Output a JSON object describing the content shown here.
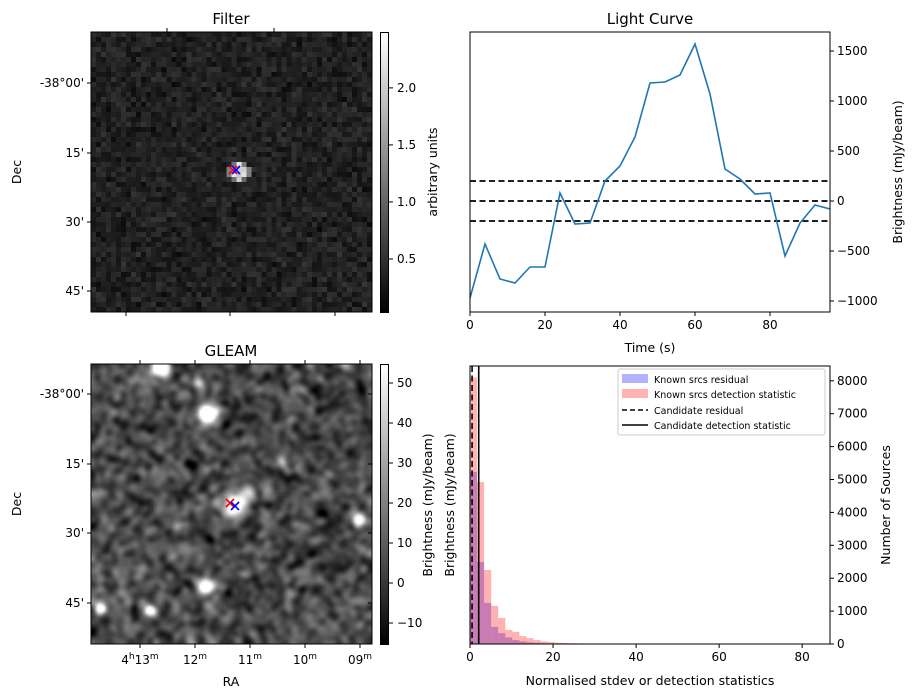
{
  "filter_panel": {
    "title": "Filter",
    "ylabel": "Dec",
    "dec_ticks": [
      "-38°00'",
      "15'",
      "30'",
      "45'"
    ],
    "colorbar": {
      "label": "arbitrary units",
      "range": [
        0.035,
        2.49
      ],
      "ticks": [
        2.0,
        1.5,
        1.0,
        0.5
      ],
      "tick_labels": [
        "2.0",
        "1.5",
        "1.0",
        "0.5"
      ]
    },
    "markers": [
      {
        "color": "#ff0000",
        "symbol": "x"
      },
      {
        "color": "#0000ff",
        "symbol": "x"
      }
    ]
  },
  "gleam_panel": {
    "title": "GLEAM",
    "ylabel": "Dec",
    "xlabel": "RA",
    "dec_ticks": [
      "-38°00'",
      "15'",
      "30'",
      "45'"
    ],
    "ra_ticks": [
      {
        "h": "4",
        "hsup": "h",
        "m": "13",
        "msup": "m"
      },
      {
        "h": "",
        "hsup": "",
        "m": "12",
        "msup": "m"
      },
      {
        "h": "",
        "hsup": "",
        "m": "11",
        "msup": "m"
      },
      {
        "h": "",
        "hsup": "",
        "m": "10",
        "msup": "m"
      },
      {
        "h": "",
        "hsup": "",
        "m": "09",
        "msup": "m"
      }
    ],
    "colorbar": {
      "label": "Brightness (mJy/beam)",
      "range": [
        -15.5,
        54.5
      ],
      "ticks": [
        50,
        40,
        30,
        20,
        10,
        0,
        -10
      ],
      "tick_labels": [
        "50",
        "40",
        "30",
        "20",
        "10",
        "0",
        "−10"
      ]
    },
    "markers": [
      {
        "color": "#ff0000",
        "symbol": "x"
      },
      {
        "color": "#0000ff",
        "symbol": "x"
      }
    ]
  },
  "chart_data": [
    {
      "type": "line",
      "title": "Light Curve",
      "xlabel": "Time (s)",
      "ylabel": "Brightness (mJy/beam)",
      "xlim": [
        0,
        96
      ],
      "ylim": [
        -1110,
        1690
      ],
      "xticks": [
        0,
        20,
        40,
        60,
        80
      ],
      "yticks": [
        1500,
        1000,
        500,
        0,
        -500,
        -1000
      ],
      "ytick_labels": [
        "1500",
        "1000",
        "500",
        "0",
        "−500",
        "−1000"
      ],
      "color": "#1f77b4",
      "x": [
        0,
        4,
        8,
        12,
        16,
        20,
        24,
        28,
        32,
        36,
        40,
        44,
        48,
        52,
        56,
        60,
        64,
        68,
        72,
        76,
        80,
        84,
        88,
        92,
        96
      ],
      "y": [
        -970,
        -430,
        -780,
        -820,
        -660,
        -660,
        80,
        -230,
        -220,
        200,
        350,
        640,
        1180,
        1190,
        1260,
        1570,
        1070,
        320,
        220,
        70,
        80,
        -550,
        -220,
        -40,
        -80
      ],
      "hlines": [
        200,
        0,
        -200
      ]
    },
    {
      "type": "bar",
      "subtype": "histogram",
      "xlabel": "Normalised stdev or detection statistics",
      "ylabel_left": "Brightness (mJy/beam)",
      "ylabel_right": "Number of Sources",
      "xlim": [
        0,
        86.7
      ],
      "ylim": [
        0,
        8450
      ],
      "xticks": [
        0,
        20,
        40,
        60,
        80
      ],
      "yticks": [
        0,
        1000,
        2000,
        3000,
        4000,
        5000,
        6000,
        7000,
        8000
      ],
      "bin_width": 1.7,
      "series": [
        {
          "name": "Known srcs residual",
          "color": "#0000ff",
          "alpha": 0.3,
          "values": [
            5230,
            2490,
            1250,
            520,
            330,
            200,
            120,
            80,
            50,
            35,
            25,
            18,
            12,
            10,
            8,
            6,
            5,
            4,
            3,
            3,
            2,
            2,
            2,
            2,
            1,
            1,
            1,
            1,
            1,
            1,
            1,
            1,
            1,
            1,
            1,
            1,
            1,
            1,
            1,
            0,
            0,
            0,
            0,
            0,
            0,
            0,
            0,
            0,
            0
          ]
        },
        {
          "name": "Known srcs detection statistic",
          "color": "#ff0000",
          "alpha": 0.3,
          "values": [
            8100,
            4920,
            2250,
            1160,
            790,
            430,
            370,
            240,
            180,
            120,
            80,
            60,
            40,
            30,
            25,
            20,
            15,
            12,
            10,
            8,
            6,
            5,
            5,
            4,
            4,
            3,
            3,
            3,
            2,
            2,
            2,
            2,
            2,
            2,
            2,
            1,
            1,
            1,
            1,
            2,
            1,
            1,
            1,
            1,
            1,
            1,
            1,
            1,
            1
          ]
        }
      ],
      "vlines": [
        {
          "name": "Candidate residual",
          "x": 0.5,
          "style": "dashed"
        },
        {
          "name": "Candidate detection statistic",
          "x": 2.1,
          "style": "solid"
        }
      ],
      "legend_position": "top-right"
    }
  ]
}
